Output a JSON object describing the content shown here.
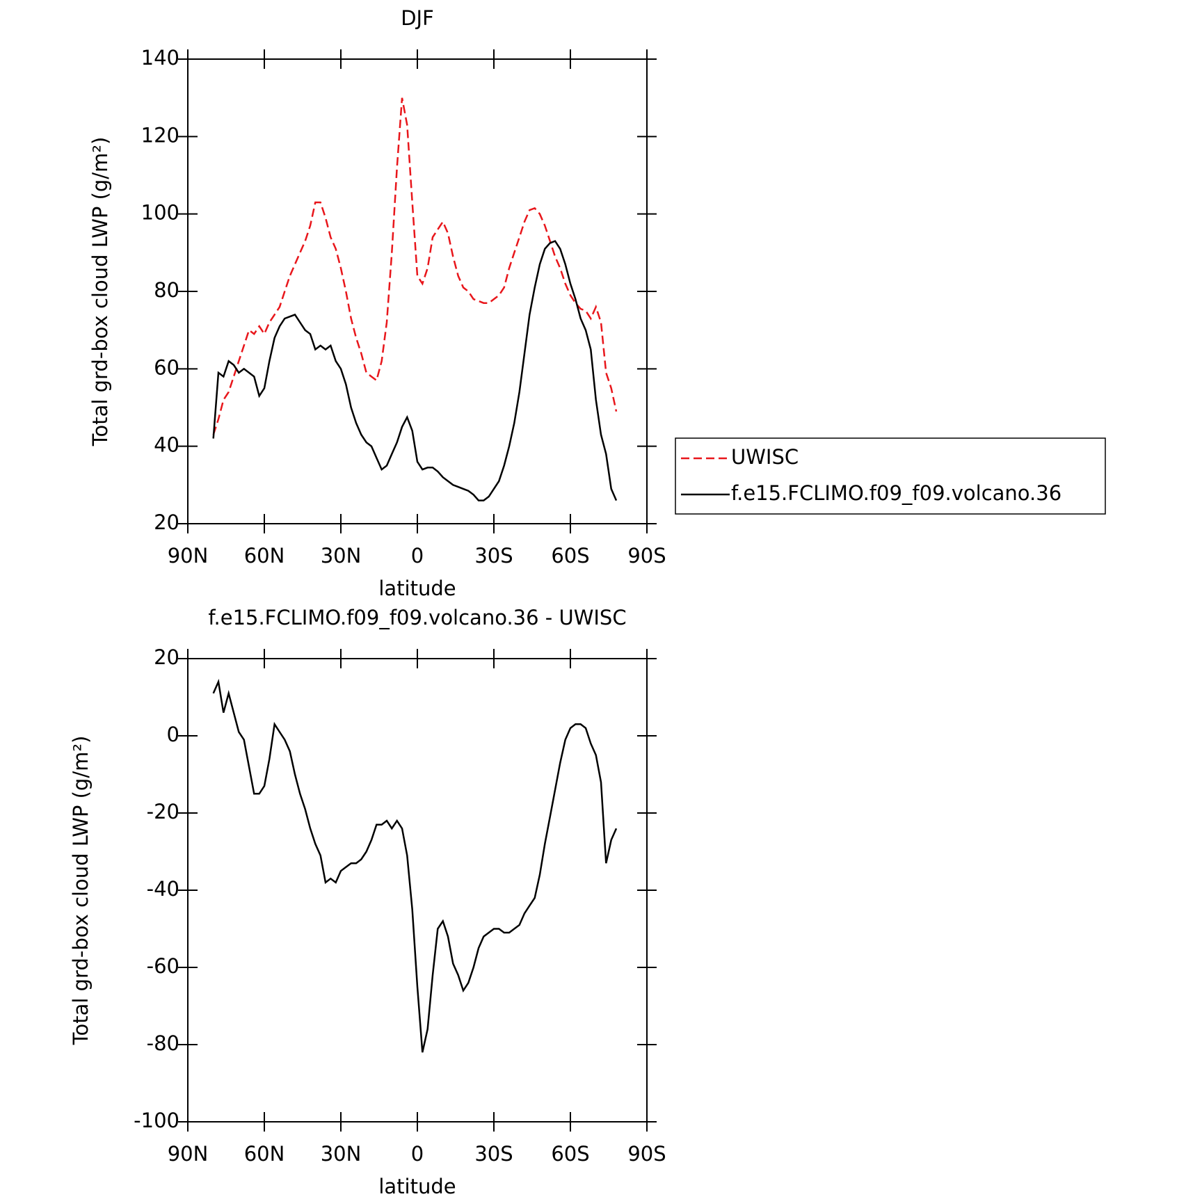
{
  "chart_data": [
    {
      "type": "line",
      "title": "DJF",
      "xlabel": "latitude",
      "ylabel": "Total grd-box cloud LWP (g/m²)",
      "x": [
        80,
        78,
        76,
        74,
        72,
        70,
        68,
        66,
        64,
        62,
        60,
        58,
        56,
        54,
        52,
        50,
        48,
        46,
        44,
        42,
        40,
        38,
        36,
        34,
        32,
        30,
        28,
        26,
        24,
        22,
        20,
        18,
        16,
        14,
        12,
        10,
        8,
        6,
        4,
        2,
        0,
        -2,
        -4,
        -6,
        -8,
        -10,
        -12,
        -14,
        -16,
        -18,
        -20,
        -22,
        -24,
        -26,
        -28,
        -30,
        -32,
        -34,
        -36,
        -38,
        -40,
        -42,
        -44,
        -46,
        -48,
        -50,
        -52,
        -54,
        -56,
        -58,
        -60,
        -62,
        -64,
        -66,
        -68,
        -70,
        -72,
        -74,
        -76,
        -78
      ],
      "series": [
        {
          "name": "UWISC",
          "color": "#e8161b",
          "style": "dashed",
          "values": [
            43,
            47,
            52,
            54,
            58,
            62,
            66,
            70,
            69,
            71,
            69,
            72,
            74,
            76,
            80,
            84,
            87,
            90,
            93,
            97,
            103,
            103,
            99,
            94,
            91,
            86,
            80,
            73,
            68,
            64,
            59,
            58,
            57,
            62,
            72,
            90,
            112,
            130,
            123,
            103,
            84,
            82,
            86,
            94,
            96,
            98,
            95,
            89,
            84,
            81,
            80,
            78,
            77.5,
            77,
            77,
            78,
            79,
            81,
            86,
            90,
            94,
            98,
            101,
            101.5,
            100,
            97,
            93,
            89,
            86,
            82,
            79,
            77,
            75.5,
            75,
            73,
            76,
            72,
            59,
            55,
            49
          ]
        },
        {
          "name": "f.e15.FCLIMO.f09_f09.volcano.36",
          "color": "#000000",
          "style": "solid",
          "values": [
            42,
            59,
            58,
            62,
            61,
            59,
            60,
            59,
            58,
            53,
            55,
            62,
            68,
            71,
            73,
            73.5,
            74,
            72,
            70,
            69,
            65,
            66,
            65,
            66,
            62,
            60,
            56,
            50,
            46,
            43,
            41,
            40,
            37,
            34,
            35,
            38,
            41,
            45,
            47.5,
            44,
            36,
            34,
            34.5,
            34.5,
            33.5,
            32,
            31,
            30,
            29.5,
            29,
            28.5,
            27.5,
            26,
            26,
            27,
            29,
            31,
            35,
            40,
            46,
            54,
            64,
            74,
            81,
            87,
            91,
            92.5,
            93,
            91,
            87,
            82,
            78,
            73,
            70,
            65,
            52,
            43,
            38,
            29,
            26
          ]
        }
      ],
      "xlim": [
        90,
        -90
      ],
      "ylim": [
        20,
        140
      ],
      "xticks": [
        {
          "value": 90,
          "label": "90N"
        },
        {
          "value": 60,
          "label": "60N"
        },
        {
          "value": 30,
          "label": "30N"
        },
        0,
        {
          "value": -30,
          "label": "30S"
        },
        {
          "value": -60,
          "label": "60S"
        },
        {
          "value": -90,
          "label": "90S"
        }
      ],
      "yticks": [
        20,
        40,
        60,
        80,
        100,
        120,
        140
      ],
      "legend": "right"
    },
    {
      "type": "line",
      "title": "f.e15.FCLIMO.f09_f09.volcano.36 - UWISC",
      "xlabel": "latitude",
      "ylabel": "Total grd-box cloud LWP (g/m²)",
      "x": [
        80,
        78,
        76,
        74,
        72,
        70,
        68,
        66,
        64,
        62,
        60,
        58,
        56,
        54,
        52,
        50,
        48,
        46,
        44,
        42,
        40,
        38,
        36,
        34,
        32,
        30,
        28,
        26,
        24,
        22,
        20,
        18,
        16,
        14,
        12,
        10,
        8,
        6,
        4,
        2,
        0,
        -2,
        -4,
        -6,
        -8,
        -10,
        -12,
        -14,
        -16,
        -18,
        -20,
        -22,
        -24,
        -26,
        -28,
        -30,
        -32,
        -34,
        -36,
        -38,
        -40,
        -42,
        -44,
        -46,
        -48,
        -50,
        -52,
        -54,
        -56,
        -58,
        -60,
        -62,
        -64,
        -66,
        -68,
        -70,
        -72,
        -74,
        -76,
        -78
      ],
      "series": [
        {
          "color": "#000000",
          "style": "solid",
          "values": [
            11,
            14,
            6,
            11,
            6,
            1,
            -1,
            -8,
            -15,
            -15,
            -13,
            -6,
            3,
            1,
            -1,
            -4,
            -10,
            -15,
            -19,
            -24,
            -28,
            -31,
            -38,
            -37,
            -38,
            -35,
            -34,
            -33,
            -33,
            -32,
            -30,
            -27,
            -23,
            -23,
            -22,
            -24,
            -22,
            -24,
            -31,
            -45,
            -65,
            -82,
            -76,
            -62,
            -50,
            -48,
            -52,
            -59,
            -62,
            -66,
            -64,
            -60,
            -55,
            -52,
            -51,
            -50,
            -50,
            -51,
            -51,
            -50,
            -49,
            -46,
            -44,
            -42,
            -36,
            -28,
            -21,
            -14,
            -7,
            -1,
            2,
            3,
            3,
            2,
            -2,
            -5,
            -12,
            -33,
            -27,
            -24
          ]
        }
      ],
      "xlim": [
        90,
        -90
      ],
      "ylim": [
        -100,
        20
      ],
      "xticks": [
        {
          "value": 90,
          "label": "90N"
        },
        {
          "value": 60,
          "label": "60N"
        },
        {
          "value": 30,
          "label": "30N"
        },
        0,
        {
          "value": -30,
          "label": "30S"
        },
        {
          "value": -60,
          "label": "60S"
        },
        {
          "value": -90,
          "label": "90S"
        }
      ],
      "yticks": [
        -100,
        -80,
        -60,
        -40,
        -20,
        0,
        20
      ]
    }
  ]
}
